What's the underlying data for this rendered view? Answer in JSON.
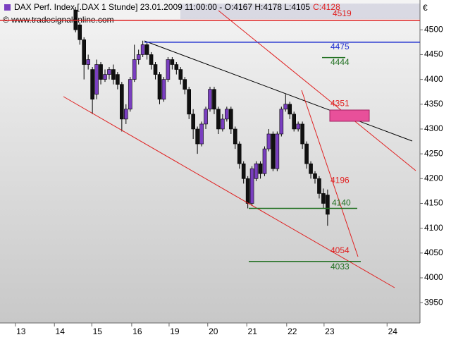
{
  "chart_data": {
    "type": "candlestick",
    "header": "DAX Perf. Index [.DAX  1 Stunde] 23.01.2009 11:00:00 - O:4167 H:4178 L:4105",
    "close_label": "C:4128",
    "watermark": "© www.tradesignalonline.com",
    "currency": "€",
    "up_color": "#7a3fc0",
    "down_color": "#111111",
    "x": [
      18,
      19,
      20,
      21,
      22,
      23,
      24,
      25,
      26,
      27,
      28,
      29,
      30,
      31,
      32,
      33,
      34,
      35,
      36,
      37,
      38,
      39,
      40,
      41,
      42,
      43,
      44,
      45,
      46,
      47,
      48,
      49,
      50,
      51,
      52,
      53,
      54,
      55,
      56,
      57,
      58,
      59,
      60,
      61,
      62,
      63,
      64,
      65,
      66,
      67,
      68,
      69,
      70,
      71,
      72,
      73,
      74,
      75,
      76,
      77,
      78
    ],
    "open": [
      4540,
      4510,
      4480,
      4430,
      4420,
      4370,
      4430,
      4400,
      4410,
      4420,
      4410,
      4390,
      4320,
      4340,
      4400,
      4440,
      4450,
      4470,
      4450,
      4430,
      4410,
      4360,
      4400,
      4440,
      4430,
      4420,
      4400,
      4380,
      4330,
      4300,
      4270,
      4310,
      4340,
      4380,
      4340,
      4300,
      4320,
      4340,
      4300,
      4270,
      4230,
      4200,
      4150,
      4200,
      4230,
      4210,
      4260,
      4290,
      4220,
      4290,
      4340,
      4350,
      4330,
      4300,
      4310,
      4270,
      4230,
      4210,
      4200,
      4170,
      4167
    ],
    "high": [
      4546,
      4515,
      4485,
      4450,
      4425,
      4440,
      4435,
      4420,
      4425,
      4430,
      4415,
      4395,
      4350,
      4405,
      4470,
      4460,
      4478,
      4475,
      4455,
      4435,
      4415,
      4405,
      4445,
      4445,
      4435,
      4425,
      4405,
      4385,
      4340,
      4305,
      4315,
      4345,
      4385,
      4385,
      4345,
      4330,
      4345,
      4345,
      4305,
      4275,
      4235,
      4205,
      4225,
      4235,
      4235,
      4265,
      4300,
      4295,
      4295,
      4345,
      4370,
      4355,
      4335,
      4315,
      4315,
      4275,
      4235,
      4215,
      4205,
      4180,
      4178
    ],
    "low": [
      4495,
      4470,
      4400,
      4420,
      4330,
      4360,
      4390,
      4395,
      4400,
      4390,
      4380,
      4295,
      4310,
      4335,
      4395,
      4430,
      4445,
      4440,
      4420,
      4400,
      4350,
      4355,
      4395,
      4420,
      4410,
      4390,
      4370,
      4320,
      4280,
      4250,
      4265,
      4300,
      4335,
      4330,
      4290,
      4295,
      4315,
      4290,
      4260,
      4220,
      4190,
      4140,
      4145,
      4195,
      4200,
      4205,
      4255,
      4215,
      4215,
      4285,
      4335,
      4320,
      4295,
      4295,
      4260,
      4220,
      4200,
      4190,
      4160,
      4140,
      4105
    ],
    "close": [
      4500,
      4480,
      4430,
      4440,
      4360,
      4430,
      4400,
      4410,
      4420,
      4400,
      4390,
      4320,
      4340,
      4400,
      4440,
      4450,
      4470,
      4450,
      4430,
      4410,
      4360,
      4400,
      4440,
      4430,
      4420,
      4400,
      4380,
      4330,
      4300,
      4270,
      4310,
      4340,
      4380,
      4340,
      4300,
      4320,
      4340,
      4300,
      4270,
      4230,
      4200,
      4150,
      4220,
      4230,
      4210,
      4260,
      4290,
      4220,
      4290,
      4340,
      4350,
      4330,
      4300,
      4310,
      4270,
      4230,
      4210,
      4200,
      4170,
      4150,
      4128
    ],
    "levels": [
      {
        "value": 4519,
        "color": "#e02020"
      },
      {
        "value": 4475,
        "color": "#2030d0"
      },
      {
        "value": 4444,
        "color": "#207020"
      },
      {
        "value": 4351,
        "color": "#e02020"
      },
      {
        "value": 4196,
        "color": "#e02020"
      },
      {
        "value": 4140,
        "color": "#207020"
      },
      {
        "value": 4054,
        "color": "#e02020"
      },
      {
        "value": 4033,
        "color": "#207020"
      }
    ],
    "xlim": [
      0,
      100
    ],
    "ylim": [
      3909,
      4553
    ],
    "xticks": [
      {
        "value": 5,
        "label": "13"
      },
      {
        "value": 14.3,
        "label": "14"
      },
      {
        "value": 23.2,
        "label": "15"
      },
      {
        "value": 32.7,
        "label": "16"
      },
      {
        "value": 41.6,
        "label": "19"
      },
      {
        "value": 50.8,
        "label": "20"
      },
      {
        "value": 60.1,
        "label": "21"
      },
      {
        "value": 69.6,
        "label": "22"
      },
      {
        "value": 78.5,
        "label": "23"
      },
      {
        "value": 93.5,
        "label": "24"
      }
    ],
    "yticks": [
      3950,
      4000,
      4050,
      4100,
      4150,
      4200,
      4250,
      4300,
      4350,
      4400,
      4450,
      4500
    ]
  }
}
